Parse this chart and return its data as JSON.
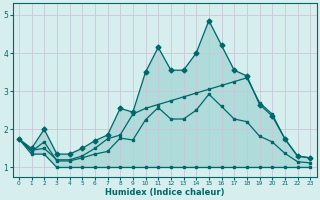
{
  "xlabel": "Humidex (Indice chaleur)",
  "bg_color": "#d6eeee",
  "grid_color": "#c8c8d8",
  "line_color": "#006868",
  "fill_color": "#a0d4d4",
  "xlim": [
    -0.5,
    23.5
  ],
  "ylim": [
    0.75,
    5.3
  ],
  "xticks": [
    0,
    1,
    2,
    3,
    4,
    5,
    6,
    7,
    8,
    9,
    10,
    11,
    12,
    13,
    14,
    15,
    16,
    17,
    18,
    19,
    20,
    21,
    22,
    23
  ],
  "yticks": [
    1,
    2,
    3,
    4,
    5
  ],
  "line_max_x": [
    0,
    1,
    2,
    3,
    4,
    5,
    6,
    7,
    8,
    9,
    10,
    11,
    12,
    13,
    14,
    15,
    16,
    17,
    18,
    19,
    20,
    21,
    22,
    23
  ],
  "line_max_y": [
    1.75,
    1.5,
    2.0,
    1.35,
    1.35,
    1.5,
    1.7,
    1.85,
    2.55,
    2.45,
    3.5,
    4.15,
    3.55,
    3.55,
    4.0,
    4.85,
    4.2,
    3.55,
    3.4,
    2.65,
    2.35,
    1.75,
    1.3,
    1.25
  ],
  "line_min_x": [
    0,
    1,
    2,
    3,
    4,
    5,
    6,
    7,
    8,
    9,
    10,
    11,
    12,
    13,
    14,
    15,
    16,
    17,
    18,
    19,
    20,
    21,
    22,
    23
  ],
  "line_min_y": [
    1.75,
    1.35,
    1.35,
    1.0,
    1.0,
    1.0,
    1.0,
    1.0,
    1.0,
    1.0,
    1.0,
    1.0,
    1.0,
    1.0,
    1.0,
    1.0,
    1.0,
    1.0,
    1.0,
    1.0,
    1.0,
    1.0,
    1.0,
    1.0
  ],
  "line_avg_x": [
    0,
    1,
    2,
    3,
    4,
    5,
    6,
    7,
    8,
    9,
    10,
    11,
    12,
    13,
    14,
    15,
    16,
    17,
    18,
    19,
    20,
    21,
    22,
    23
  ],
  "line_avg_y": [
    1.75,
    1.42,
    1.67,
    1.17,
    1.17,
    1.25,
    1.35,
    1.42,
    1.77,
    1.72,
    2.25,
    2.57,
    2.27,
    2.27,
    2.5,
    2.92,
    2.6,
    2.27,
    2.2,
    1.82,
    1.67,
    1.37,
    1.15,
    1.12
  ],
  "line_trend_x": [
    0,
    1,
    2,
    3,
    4,
    5,
    6,
    7,
    8,
    9,
    10,
    11,
    12,
    13,
    14,
    15,
    16,
    17,
    18,
    19,
    20,
    21,
    22,
    23
  ],
  "line_trend_y": [
    1.75,
    1.45,
    1.5,
    1.2,
    1.2,
    1.3,
    1.5,
    1.75,
    1.85,
    2.4,
    2.55,
    2.65,
    2.75,
    2.85,
    2.95,
    3.05,
    3.15,
    3.25,
    3.35,
    2.7,
    2.4,
    1.75,
    1.3,
    1.25
  ]
}
